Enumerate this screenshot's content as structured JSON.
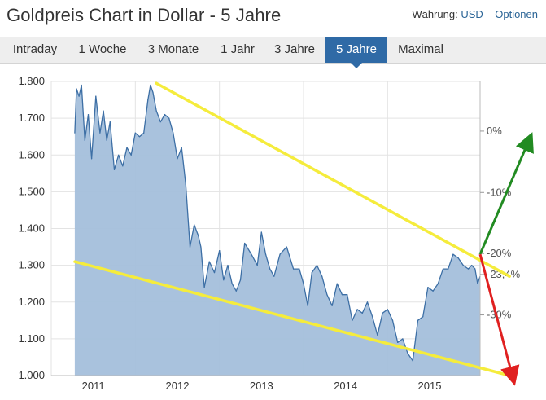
{
  "header": {
    "title": "Goldpreis Chart in Dollar - 5 Jahre",
    "currency_label": "Währung:",
    "currency_value": "USD",
    "options_label": "Optionen"
  },
  "tabs": [
    {
      "label": "Intraday",
      "active": false
    },
    {
      "label": "1 Woche",
      "active": false
    },
    {
      "label": "3 Monate",
      "active": false
    },
    {
      "label": "1 Jahr",
      "active": false
    },
    {
      "label": "3 Jahre",
      "active": false
    },
    {
      "label": "5 Jahre",
      "active": true
    },
    {
      "label": "Maximal",
      "active": false
    }
  ],
  "colors": {
    "area_fill": "#a4bfdb",
    "line": "#3d6fa5",
    "tab_active": "#2f6aa6",
    "trend": "#f5ec3c",
    "arrow_up": "#228b22",
    "arrow_down": "#e02020",
    "highlight_pct": "#d32f2f"
  },
  "chart_data": {
    "type": "area",
    "xlabel": "",
    "ylabel": "",
    "ylim": [
      1000,
      1800
    ],
    "xlim": [
      2011.0,
      2016.1
    ],
    "y_ticks": [
      "1.000",
      "1.100",
      "1.200",
      "1.300",
      "1.400",
      "1.500",
      "1.600",
      "1.700",
      "1.800"
    ],
    "y_tick_values": [
      1000,
      1100,
      1200,
      1300,
      1400,
      1500,
      1600,
      1700,
      1800
    ],
    "x_ticks": [
      "2011",
      "2012",
      "2013",
      "2014",
      "2015"
    ],
    "x_tick_values": [
      2011.0,
      2012.0,
      2013.0,
      2014.0,
      2015.0
    ],
    "right_axis_ticks": [
      {
        "label": "0%",
        "price": 1665
      },
      {
        "label": "-10%",
        "price": 1498
      },
      {
        "label": "-20%",
        "price": 1332
      },
      {
        "label": "-23,4%",
        "price": 1275,
        "highlight": true
      },
      {
        "label": "-30%",
        "price": 1165
      }
    ],
    "grid": true,
    "series": [
      {
        "x": [
          2011.28,
          2011.3,
          2011.33,
          2011.36,
          2011.4,
          2011.44,
          2011.48,
          2011.53,
          2011.58,
          2011.62,
          2011.66,
          2011.7,
          2011.75,
          2011.8,
          2011.85,
          2011.9,
          2011.95,
          2012.0,
          2012.05,
          2012.1,
          2012.15,
          2012.18,
          2012.21,
          2012.25,
          2012.3,
          2012.35,
          2012.4,
          2012.45,
          2012.5,
          2012.55,
          2012.6,
          2012.65,
          2012.7,
          2012.75,
          2012.78,
          2012.82,
          2012.88,
          2012.94,
          2013.0,
          2013.05,
          2013.1,
          2013.15,
          2013.2,
          2013.25,
          2013.3,
          2013.38,
          2013.45,
          2013.5,
          2013.55,
          2013.6,
          2013.65,
          2013.72,
          2013.8,
          2013.88,
          2013.95,
          2014.0,
          2014.05,
          2014.1,
          2014.16,
          2014.22,
          2014.28,
          2014.34,
          2014.4,
          2014.46,
          2014.52,
          2014.58,
          2014.64,
          2014.7,
          2014.76,
          2014.82,
          2014.88,
          2014.94,
          2015.0,
          2015.06,
          2015.12,
          2015.18,
          2015.24,
          2015.3,
          2015.36,
          2015.42,
          2015.48,
          2015.54,
          2015.6,
          2015.66,
          2015.72,
          2015.78,
          2015.84,
          2015.9,
          2015.96,
          2016.0,
          2016.04,
          2016.07,
          2016.1
        ],
        "values": [
          1660,
          1780,
          1760,
          1790,
          1640,
          1710,
          1590,
          1760,
          1660,
          1720,
          1640,
          1690,
          1560,
          1600,
          1570,
          1620,
          1600,
          1660,
          1650,
          1660,
          1750,
          1790,
          1770,
          1720,
          1690,
          1710,
          1700,
          1660,
          1590,
          1620,
          1520,
          1350,
          1410,
          1380,
          1350,
          1240,
          1310,
          1280,
          1340,
          1260,
          1300,
          1250,
          1230,
          1260,
          1360,
          1330,
          1300,
          1390,
          1330,
          1290,
          1270,
          1330,
          1350,
          1290,
          1290,
          1250,
          1190,
          1280,
          1300,
          1270,
          1220,
          1190,
          1250,
          1220,
          1220,
          1150,
          1180,
          1170,
          1200,
          1160,
          1110,
          1170,
          1180,
          1150,
          1090,
          1100,
          1060,
          1040,
          1150,
          1160,
          1240,
          1230,
          1250,
          1290,
          1290,
          1330,
          1320,
          1300,
          1290,
          1300,
          1290,
          1250,
          1270
        ]
      }
    ],
    "annotations": [
      {
        "type": "trendline",
        "color": "yellow",
        "from": [
          2012.25,
          1795
        ],
        "to": [
          2016.45,
          1270
        ]
      },
      {
        "type": "trendline",
        "color": "yellow",
        "from": [
          2011.28,
          1310
        ],
        "to": [
          2016.45,
          1000
        ]
      },
      {
        "type": "arrow",
        "color": "green",
        "from": [
          2016.1,
          1330
        ],
        "to": [
          2016.7,
          1650
        ]
      },
      {
        "type": "arrow",
        "color": "red",
        "from": [
          2016.1,
          1330
        ],
        "to": [
          2016.5,
          985
        ]
      }
    ]
  }
}
